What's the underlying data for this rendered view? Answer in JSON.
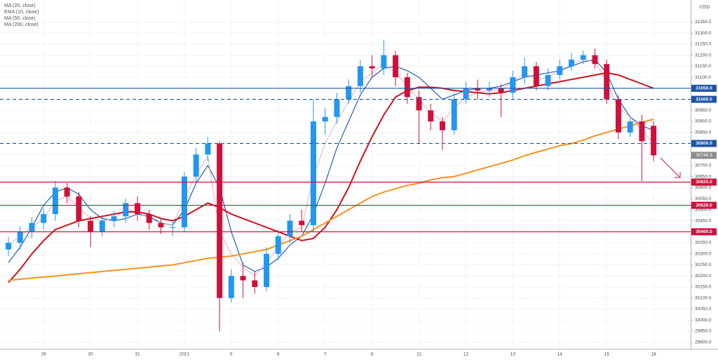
{
  "chart_data": {
    "type": "candlestick",
    "legend": [
      "MA (20, close)",
      "EMA (10, close)",
      "MA (50, close)",
      "MA (200, close)"
    ],
    "currency": "USD",
    "up_color": "#2196f3",
    "down_color": "#d0103a",
    "categories": [
      null,
      null,
      null,
      "29",
      null,
      null,
      null,
      "30",
      null,
      null,
      null,
      "31",
      null,
      null,
      null,
      "2021",
      null,
      null,
      null,
      "5",
      null,
      null,
      null,
      "6",
      null,
      null,
      null,
      "7",
      null,
      null,
      null,
      "8",
      null,
      null,
      null,
      "11",
      null,
      null,
      null,
      "12",
      null,
      null,
      null,
      "13",
      null,
      null,
      null,
      "14",
      null,
      null,
      null,
      "15",
      null,
      null,
      null,
      "18"
    ],
    "open": [
      30320,
      30350,
      30400,
      30440,
      30480,
      30600,
      30560,
      30450,
      30400,
      30450,
      30470,
      30530,
      30480,
      30440,
      30420,
      30420,
      30650,
      30750,
      30800,
      30100,
      30200,
      30180,
      30150,
      30300,
      30380,
      30450,
      30430,
      30900,
      30920,
      31000,
      31060,
      31150,
      31140,
      31200,
      31100,
      31010,
      30950,
      30900,
      30860,
      31000,
      31050,
      31040,
      31050,
      31030,
      31100,
      31150,
      31060,
      31110,
      31150,
      31180,
      31200,
      31160,
      31000,
      30850,
      30900,
      30880
    ],
    "high": [
      30375,
      30425,
      30465,
      30505,
      30630,
      30620,
      30580,
      30470,
      30475,
      30495,
      30550,
      30560,
      30500,
      30460,
      30445,
      30670,
      30780,
      30830,
      30810,
      30230,
      30260,
      30220,
      30330,
      30410,
      30480,
      30500,
      31000,
      30960,
      31030,
      31090,
      31180,
      31200,
      31270,
      31220,
      31120,
      31040,
      30980,
      30920,
      31030,
      31080,
      31090,
      31080,
      31070,
      31130,
      31190,
      31170,
      31140,
      31180,
      31210,
      31220,
      31230,
      31180,
      31020,
      30920,
      30930,
      30900
    ],
    "low": [
      30290,
      30320,
      30370,
      30410,
      30450,
      30530,
      30420,
      30330,
      30380,
      30420,
      30440,
      30450,
      30410,
      30390,
      30380,
      30400,
      30620,
      30720,
      29950,
      30080,
      30100,
      30120,
      30130,
      30270,
      30350,
      30400,
      30400,
      30840,
      30890,
      30980,
      31030,
      31100,
      31110,
      31060,
      30980,
      30800,
      30860,
      30770,
      30840,
      30980,
      31000,
      31010,
      30920,
      31000,
      31070,
      31040,
      31040,
      31090,
      31130,
      31160,
      31140,
      30980,
      30820,
      30830,
      30630,
      30720
    ],
    "close": [
      30350,
      30400,
      30440,
      30480,
      30600,
      30560,
      30450,
      30400,
      30450,
      30470,
      30530,
      30480,
      30440,
      30420,
      30420,
      30650,
      30750,
      30800,
      30100,
      30200,
      30180,
      30150,
      30300,
      30380,
      30450,
      30430,
      30900,
      30920,
      31000,
      31060,
      31150,
      31140,
      31200,
      31100,
      31010,
      30950,
      30900,
      30860,
      31000,
      31050,
      31040,
      31050,
      31030,
      31100,
      31150,
      31060,
      31110,
      31150,
      31180,
      31200,
      31160,
      31000,
      30850,
      30900,
      30810,
      30746.3
    ],
    "lines": [
      {
        "color": "#1f5fbf",
        "width": 1.2,
        "values": [
          30260,
          30330,
          30420,
          30520,
          30580,
          30600,
          30570,
          30500,
          30460,
          30450,
          30460,
          30480,
          30470,
          30440,
          30430,
          30500,
          30620,
          30700,
          30600,
          30400,
          30250,
          30220,
          30240,
          30280,
          30340,
          30380,
          30480,
          30620,
          30780,
          30900,
          31020,
          31100,
          31140,
          31150,
          31130,
          31100,
          31050,
          31000,
          31020,
          31040,
          31050,
          31050,
          31060,
          31080,
          31100,
          31110,
          31120,
          31130,
          31150,
          31170,
          31180,
          31120,
          31000,
          30920,
          30880,
          30860
        ]
      },
      {
        "color": "#e89ab0",
        "width": 0.8,
        "values": [
          30340,
          30380,
          30420,
          30460,
          30540,
          30560,
          30510,
          30460,
          30450,
          30460,
          30500,
          30490,
          30460,
          30440,
          30430,
          30550,
          30660,
          30740,
          30400,
          30300,
          30240,
          30200,
          30260,
          30330,
          30400,
          30420,
          30650,
          30800,
          30900,
          30990,
          31080,
          31120,
          31160,
          31120,
          31060,
          31000,
          30940,
          30900,
          30960,
          31010,
          31030,
          31040,
          31040,
          31080,
          31120,
          31090,
          31100,
          31130,
          31160,
          31180,
          31170,
          31080,
          30960,
          30920,
          30860,
          30800
        ]
      },
      {
        "color": "#d0101e",
        "width": 2,
        "values": [
          30170,
          30230,
          30300,
          30360,
          30410,
          30430,
          30450,
          30460,
          30470,
          30480,
          30490,
          30490,
          30480,
          30460,
          30450,
          30470,
          30500,
          30530,
          30510,
          30480,
          30460,
          30440,
          30420,
          30400,
          30380,
          30360,
          30370,
          30420,
          30500,
          30600,
          30720,
          30830,
          30930,
          31010,
          31040,
          31055,
          31055,
          31050,
          31040,
          31035,
          31030,
          31025,
          31030,
          31040,
          31050,
          31060,
          31070,
          31080,
          31090,
          31100,
          31110,
          31120,
          31110,
          31090,
          31070,
          31050
        ]
      },
      {
        "color": "#f7931e",
        "width": 2,
        "values": [
          30180,
          30185,
          30190,
          30195,
          30200,
          30205,
          30210,
          30215,
          30220,
          30225,
          30230,
          30235,
          30240,
          30245,
          30250,
          30260,
          30270,
          30280,
          30285,
          30290,
          30300,
          30310,
          30320,
          30340,
          30360,
          30380,
          30410,
          30440,
          30470,
          30500,
          30530,
          30560,
          30580,
          30595,
          30610,
          30620,
          30635,
          30645,
          30650,
          30665,
          30680,
          30695,
          30710,
          30725,
          30745,
          30760,
          30775,
          30790,
          30800,
          30815,
          30835,
          30850,
          30865,
          30880,
          30895,
          30910
        ]
      }
    ],
    "levels": [
      {
        "value": 31050,
        "label": "31050.0",
        "color": "#1e53a5",
        "style": "solid"
      },
      {
        "value": 31000,
        "label": "31000.0",
        "color": "#1e53a5",
        "style": "dashed"
      },
      {
        "value": 30800,
        "label": "30800.0",
        "color": "#1e53a5",
        "style": "dashed"
      },
      {
        "value": 30625,
        "label": "30625.0",
        "color": "#d0103a",
        "style": "solid"
      },
      {
        "value": 30520,
        "label": "30520.0",
        "color": "#d0103a",
        "style": "solid"
      },
      {
        "value": 30400,
        "label": "30400.0",
        "color": "#d0103a",
        "style": "solid"
      }
    ],
    "ylim": [
      29870,
      31450
    ],
    "yticks": [
      {
        "value": 29900,
        "label": "29900.0"
      },
      {
        "value": 29950,
        "label": "29950.0"
      },
      {
        "value": 30000,
        "label": "30000.0"
      },
      {
        "value": 30050,
        "label": "30050.0"
      },
      {
        "value": 30100,
        "label": "30100.0"
      },
      {
        "value": 30150,
        "label": "30150.0"
      },
      {
        "value": 30200,
        "label": "30200.0"
      },
      {
        "value": 30250,
        "label": "30250.0"
      },
      {
        "value": 30300,
        "label": "30300.0"
      },
      {
        "value": 30350,
        "label": "30350.0"
      },
      {
        "value": 30400,
        "label": "30400.0"
      },
      {
        "value": 30450,
        "label": "30450.0"
      },
      {
        "value": 30500,
        "label": "30500.0"
      },
      {
        "value": 30550,
        "label": "30550.0"
      },
      {
        "value": 30600,
        "label": "30600.0"
      },
      {
        "value": 30650,
        "label": "30650.0"
      },
      {
        "value": 30700,
        "label": "30700.0"
      },
      {
        "value": 30750,
        "label": "30750.0"
      },
      {
        "value": 30800,
        "label": "30800.0"
      },
      {
        "value": 30850,
        "label": "30850.0"
      },
      {
        "value": 30900,
        "label": "30900.0"
      },
      {
        "value": 30950,
        "label": "30950.0"
      },
      {
        "value": 31000,
        "label": "31000.0"
      },
      {
        "value": 31050,
        "label": "31050.0"
      },
      {
        "value": 31100,
        "label": "31100.0"
      },
      {
        "value": 31150,
        "label": "31150.0"
      },
      {
        "value": 31200,
        "label": "31200.0"
      },
      {
        "value": 31250,
        "label": "31250.0"
      },
      {
        "value": 31300,
        "label": "31300.0"
      },
      {
        "value": 31350,
        "label": "31350.0"
      }
    ],
    "grid": true
  }
}
